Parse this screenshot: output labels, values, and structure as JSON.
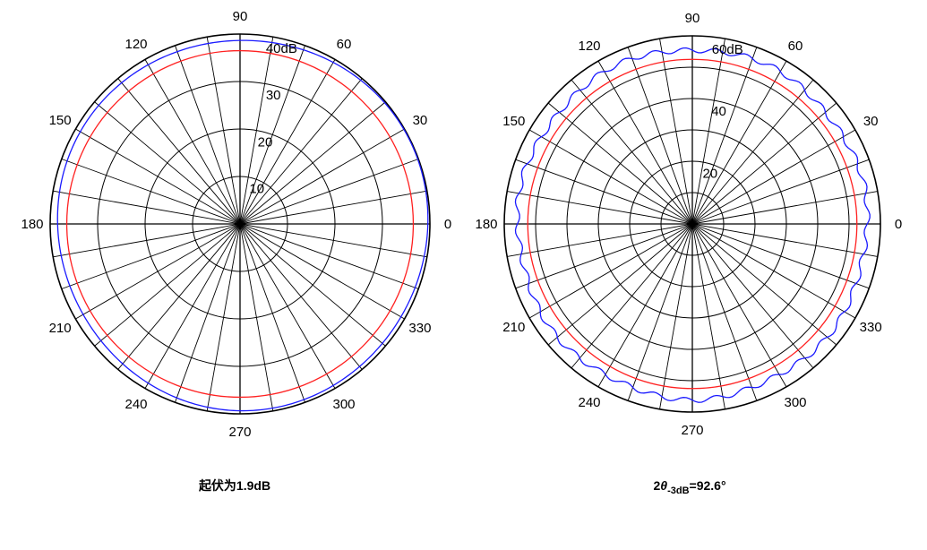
{
  "chart_data": [
    {
      "type": "polar",
      "angle_unit": "deg",
      "angle_ticks": [
        0,
        30,
        60,
        90,
        120,
        150,
        180,
        210,
        240,
        270,
        300,
        330
      ],
      "radial_ticks": [
        "10",
        "20",
        "30",
        "40dB"
      ],
      "radial_range": [
        0,
        40
      ],
      "radial_gridlines": [
        10,
        20,
        30,
        40
      ],
      "spoke_step_deg": 10,
      "grid": true,
      "series": [
        {
          "color": "#ff2020",
          "style": "circle",
          "r": 36.5
        },
        {
          "color": "#1a1aff",
          "style": "near-circle",
          "r_mean": 39.0,
          "ripple_db": 1.9,
          "bulge_deg": 0
        }
      ],
      "caption": "起伏为1.9dB"
    },
    {
      "type": "polar",
      "angle_unit": "deg",
      "angle_ticks": [
        0,
        30,
        60,
        90,
        120,
        150,
        180,
        210,
        240,
        270,
        300,
        330
      ],
      "radial_ticks": [
        "20",
        "40",
        "60dB"
      ],
      "radial_range": [
        0,
        60
      ],
      "radial_gridlines": [
        10,
        20,
        30,
        40,
        50,
        60
      ],
      "spoke_step_deg": 10,
      "grid": true,
      "series": [
        {
          "color": "#ff2020",
          "style": "circle",
          "r": 52.5
        },
        {
          "color": "#1a1aff",
          "style": "wavy",
          "r_mean": 55.8,
          "ripple_db": 1.6,
          "ripple_cycles": 36
        }
      ],
      "caption": {
        "prefix": "2",
        "symbol": "θ",
        "subscript": "-3dB",
        "value": "=92.6°"
      }
    }
  ]
}
